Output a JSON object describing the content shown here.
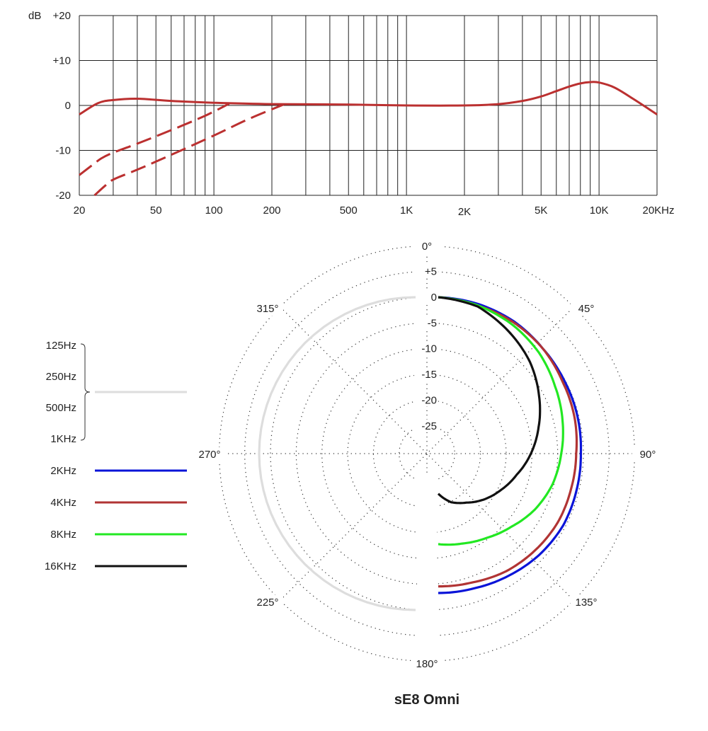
{
  "chart_data": [
    {
      "type": "line",
      "x_scale": "log",
      "xlim": [
        20,
        20000
      ],
      "ylim": [
        -20,
        20
      ],
      "yunit": "dB",
      "x_ticks": [
        {
          "value": 20,
          "label": "20"
        },
        {
          "value": 50,
          "label": "50"
        },
        {
          "value": 100,
          "label": "100"
        },
        {
          "value": 200,
          "label": "200"
        },
        {
          "value": 500,
          "label": "500"
        },
        {
          "value": 1000,
          "label": "1K"
        },
        {
          "value": 2000,
          "label": "2K"
        },
        {
          "value": 5000,
          "label": "5K"
        },
        {
          "value": 10000,
          "label": "10K"
        },
        {
          "value": 20000,
          "label": "20KHz"
        }
      ],
      "y_ticks": [
        {
          "value": 20,
          "label": "+20"
        },
        {
          "value": 10,
          "label": "+10"
        },
        {
          "value": 0,
          "label": "0"
        },
        {
          "value": -10,
          "label": "-10"
        },
        {
          "value": -20,
          "label": "-20"
        }
      ],
      "grid": true,
      "series": [
        {
          "style": "solid",
          "color": "#bb3030",
          "x": [
            20,
            25,
            30,
            40,
            60,
            100,
            200,
            500,
            1000,
            2000,
            3000,
            4000,
            5000,
            6000,
            7000,
            8000,
            9000,
            10000,
            12000,
            15000,
            20000
          ],
          "y": [
            -2,
            0.5,
            1.2,
            1.5,
            1.0,
            0.6,
            0.3,
            0.2,
            0,
            0,
            0.3,
            1.0,
            2.0,
            3.2,
            4.2,
            4.9,
            5.2,
            5.1,
            4.0,
            1.5,
            -2.0
          ]
        },
        {
          "style": "dashed",
          "color": "#bb3030",
          "x": [
            20,
            23,
            26,
            30,
            40,
            60,
            90,
            120
          ],
          "y": [
            -15.5,
            -13.5,
            -11.8,
            -10.5,
            -8.5,
            -5.5,
            -2.3,
            0.4
          ]
        },
        {
          "style": "dashed",
          "color": "#bb3030",
          "x": [
            24,
            27,
            30,
            40,
            60,
            100,
            150,
            230
          ],
          "y": [
            -20,
            -18,
            -16.5,
            -14.3,
            -11.0,
            -6.7,
            -3.1,
            0.2
          ]
        }
      ]
    },
    {
      "type": "polar",
      "title": "sE8  Omni",
      "angle_labels": [
        {
          "angle": 0,
          "label": "0°"
        },
        {
          "angle": 45,
          "label": "45°"
        },
        {
          "angle": 90,
          "label": "90°"
        },
        {
          "angle": 135,
          "label": "135°"
        },
        {
          "angle": 180,
          "label": "180°"
        },
        {
          "angle": 225,
          "label": "225°"
        },
        {
          "angle": 270,
          "label": "270°"
        },
        {
          "angle": 315,
          "label": "315°"
        }
      ],
      "radial_ticks": [
        {
          "value": 5,
          "label": "+5"
        },
        {
          "value": 0,
          "label": "0"
        },
        {
          "value": -5,
          "label": "-5"
        },
        {
          "value": -10,
          "label": "-10"
        },
        {
          "value": -15,
          "label": "-15"
        },
        {
          "value": -20,
          "label": "-20"
        },
        {
          "value": -25,
          "label": "-25"
        }
      ],
      "rlim": [
        -30,
        5
      ],
      "series": [
        {
          "name": "125Hz",
          "group": "low"
        },
        {
          "name": "250Hz",
          "group": "low"
        },
        {
          "name": "500Hz",
          "group": "low"
        },
        {
          "name": "1KHz",
          "group": "low"
        },
        {
          "name": "125Hz–1KHz",
          "color": "#dddddd",
          "side": "left",
          "angles": [
            180,
            225,
            270,
            315,
            360
          ],
          "values": [
            0,
            0,
            0,
            0,
            0
          ]
        },
        {
          "name": "2KHz",
          "color": "#0a14d8",
          "side": "right",
          "angles": [
            0,
            15,
            30,
            45,
            60,
            75,
            90,
            105,
            120,
            135,
            150,
            165,
            180
          ],
          "values": [
            0,
            -0.3,
            -0.8,
            -1.6,
            -2.1,
            -2.4,
            -2.7,
            -2.6,
            -2.4,
            -2.6,
            -3.0,
            -3.3,
            -3.3
          ]
        },
        {
          "name": "4KHz",
          "color": "#b13434",
          "side": "right",
          "angles": [
            0,
            15,
            30,
            45,
            60,
            75,
            90,
            105,
            120,
            135,
            150,
            165,
            180
          ],
          "values": [
            0,
            -0.6,
            -1.0,
            -1.6,
            -2.5,
            -3.0,
            -3.6,
            -3.7,
            -3.6,
            -3.8,
            -4.0,
            -4.5,
            -4.6
          ]
        },
        {
          "name": "8KHz",
          "color": "#22e822",
          "side": "right",
          "angles": [
            0,
            15,
            30,
            45,
            60,
            75,
            90,
            105,
            120,
            135,
            150,
            165,
            180
          ],
          "values": [
            0,
            -0.6,
            -1.5,
            -2.7,
            -4.2,
            -5.4,
            -6.5,
            -7.4,
            -8.7,
            -10.3,
            -11.5,
            -12.3,
            -12.8
          ]
        },
        {
          "name": "16KHz",
          "color": "#111111",
          "side": "right",
          "angles": [
            0,
            15,
            30,
            45,
            60,
            75,
            90,
            105,
            120,
            135,
            150,
            165,
            180
          ],
          "values": [
            0,
            -0.8,
            -3.0,
            -5.2,
            -7.8,
            -10.2,
            -12.4,
            -14.6,
            -16.3,
            -17.8,
            -19.4,
            -20.6,
            -22.6
          ]
        }
      ],
      "legend": {
        "placement": "left",
        "group_labels": [
          "125Hz",
          "250Hz",
          "500Hz",
          "1KHz"
        ],
        "items": [
          {
            "label": "2KHz",
            "color": "#0a14d8"
          },
          {
            "label": "4KHz",
            "color": "#b13434"
          },
          {
            "label": "8KHz",
            "color": "#22e822"
          },
          {
            "label": "16KHz",
            "color": "#111111"
          }
        ],
        "group_color": "#dddddd"
      }
    }
  ]
}
